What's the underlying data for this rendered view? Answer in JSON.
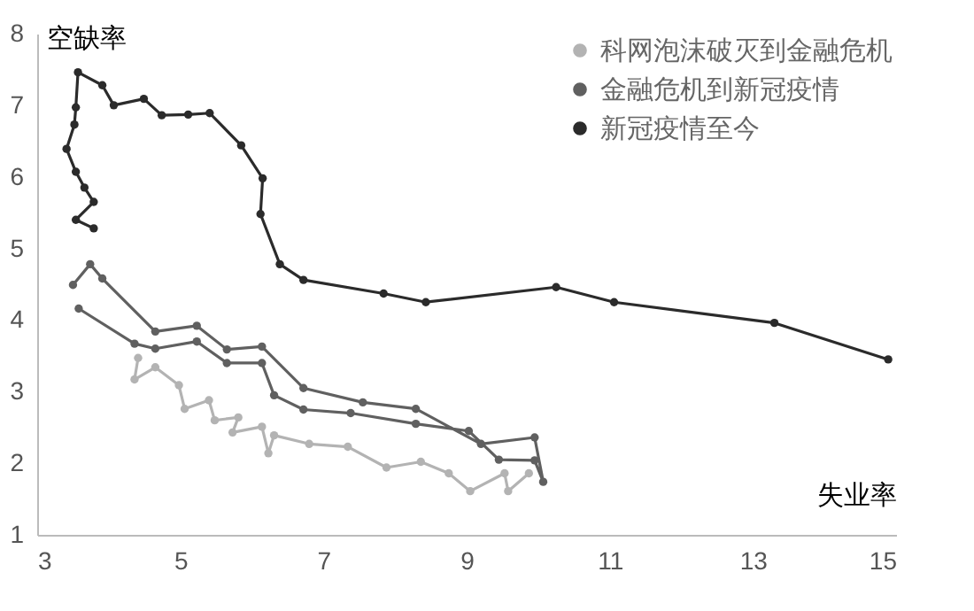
{
  "chart_data": {
    "type": "line",
    "xlabel": "失业率",
    "ylabel": "空缺率",
    "xlim": [
      3,
      15
    ],
    "xticks": [
      3,
      5,
      7,
      9,
      11,
      13,
      15
    ],
    "ylim": [
      1,
      8
    ],
    "yticks": [
      1,
      2,
      3,
      4,
      5,
      6,
      7,
      8
    ],
    "grid": false,
    "legend": "top right",
    "marker": "circle",
    "line_style": "solid",
    "series": [
      {
        "name": "科网泡沫破灭到金融危机",
        "color": "#b3b3b3",
        "x": [
          4.41,
          4.36,
          4.65,
          4.98,
          5.06,
          5.4,
          5.48,
          5.81,
          5.73,
          6.14,
          6.23,
          6.31,
          6.8,
          7.34,
          7.88,
          8.36,
          8.75,
          9.05,
          9.53,
          9.58,
          9.87
        ],
        "values": [
          3.47,
          3.17,
          3.34,
          3.09,
          2.76,
          2.88,
          2.6,
          2.64,
          2.43,
          2.51,
          2.14,
          2.39,
          2.27,
          2.23,
          1.94,
          2.02,
          1.86,
          1.61,
          1.86,
          1.61,
          1.86
        ]
      },
      {
        "name": "金融危机到新冠疫情",
        "color": "#606060",
        "x": [
          3.58,
          4.36,
          4.65,
          5.23,
          5.65,
          6.14,
          6.31,
          6.72,
          7.38,
          8.29,
          9.03,
          9.45,
          9.95,
          10.07,
          9.95,
          9.2,
          8.29,
          7.55,
          6.72,
          6.14,
          5.65,
          5.23,
          4.65,
          3.91,
          3.74,
          3.5
        ],
        "values": [
          4.16,
          3.67,
          3.6,
          3.7,
          3.4,
          3.4,
          2.95,
          2.75,
          2.7,
          2.55,
          2.45,
          2.05,
          2.04,
          1.74,
          2.36,
          2.27,
          2.76,
          2.85,
          3.05,
          3.63,
          3.59,
          3.92,
          3.84,
          4.58,
          4.78,
          4.49
        ]
      },
      {
        "name": "新冠疫情至今",
        "color": "#2b2b2b",
        "x": [
          14.89,
          13.3,
          11.06,
          10.25,
          8.43,
          7.84,
          6.72,
          6.39,
          6.12,
          6.15,
          5.85,
          5.41,
          5.11,
          4.74,
          4.49,
          4.07,
          3.91,
          3.57,
          3.54,
          3.52,
          3.41,
          3.54,
          3.66,
          3.79,
          3.54,
          3.79
        ],
        "values": [
          3.45,
          3.96,
          4.25,
          4.46,
          4.25,
          4.37,
          4.56,
          4.78,
          5.48,
          5.98,
          6.44,
          6.89,
          6.87,
          6.86,
          7.09,
          7.0,
          7.28,
          7.46,
          6.97,
          6.73,
          6.39,
          6.07,
          5.85,
          5.65,
          5.4,
          5.28
        ]
      }
    ]
  }
}
